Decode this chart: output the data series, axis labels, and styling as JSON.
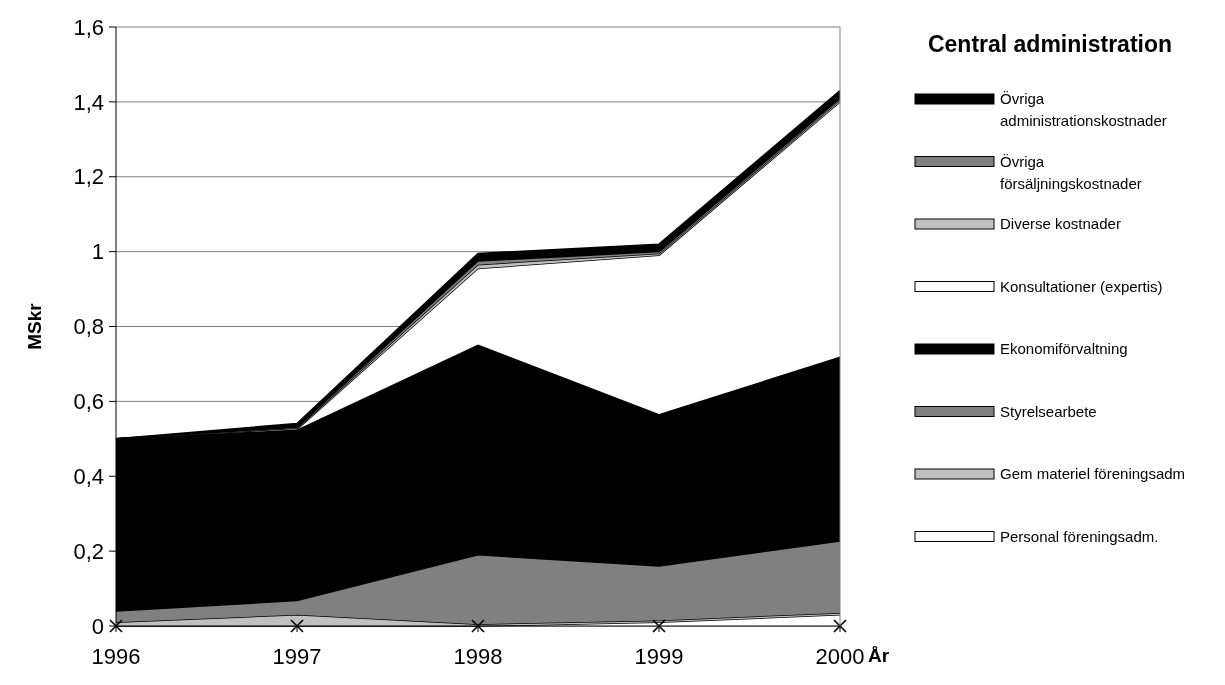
{
  "chart_data": {
    "type": "area",
    "stacked": true,
    "title": "Central administration",
    "xlabel": "År",
    "ylabel": "MSkr",
    "x": [
      1996,
      1997,
      1998,
      1999,
      2000
    ],
    "xlim": [
      1996,
      2000
    ],
    "xticks": [
      1996,
      1997,
      1998,
      1999,
      2000
    ],
    "ylim": [
      0,
      1.6
    ],
    "yticks": [
      {
        "value": 0,
        "label": "0"
      },
      {
        "value": 0.2,
        "label": "0,2"
      },
      {
        "value": 0.4,
        "label": "0,4"
      },
      {
        "value": 0.6,
        "label": "0,6"
      },
      {
        "value": 0.8,
        "label": "0,8"
      },
      {
        "value": 1,
        "label": "1"
      },
      {
        "value": 1.2,
        "label": "1,2"
      },
      {
        "value": 1.4,
        "label": "1,4"
      },
      {
        "value": 1.6,
        "label": "1,6"
      }
    ],
    "grid": "y",
    "legend": "right",
    "series": [
      {
        "name": "Personal föreningsadm.",
        "color": "#ffffff",
        "values": [
          0,
          0,
          0,
          0.01,
          0.03
        ]
      },
      {
        "name": "Gem materiel föreningsadm",
        "color": "#c0c0c0",
        "values": [
          0.01,
          0.03,
          0.005,
          0.005,
          0.005
        ]
      },
      {
        "name": "Styrelsearbete",
        "color": "#808080",
        "values": [
          0.03,
          0.038,
          0.185,
          0.145,
          0.192
        ]
      },
      {
        "name": "Ekonomiförvaltning",
        "color": "#000000",
        "values": [
          0.46,
          0.457,
          0.562,
          0.406,
          0.493
        ]
      },
      {
        "name": "Konsultationer (expertis)",
        "color": "#ffffff",
        "values": [
          0,
          0,
          0.203,
          0.424,
          0.68
        ]
      },
      {
        "name": "Diverse kostnader",
        "color": "#c0c0c0",
        "values": [
          0,
          0.003,
          0.01,
          0.005,
          0.005
        ]
      },
      {
        "name": "Övriga försäljningskostnader",
        "color": "#808080",
        "values": [
          0,
          0.003,
          0.01,
          0.005,
          0.005
        ]
      },
      {
        "name": "Övriga administrationskostnader",
        "color": "#000000",
        "values": [
          0,
          0.01,
          0.02,
          0.02,
          0.02
        ]
      },
      {
        "type": "scatter",
        "color": "#000000",
        "marker": "cross",
        "values": [
          0,
          0,
          0,
          0,
          0
        ]
      }
    ]
  }
}
